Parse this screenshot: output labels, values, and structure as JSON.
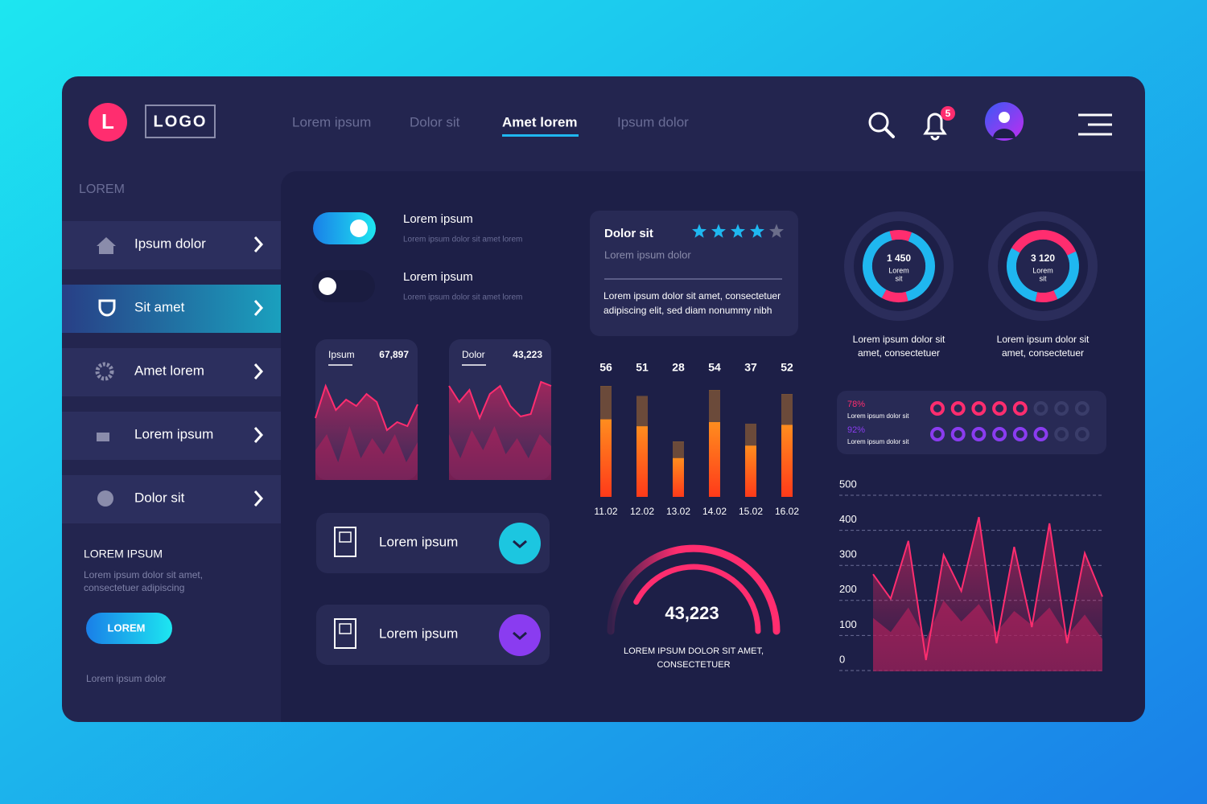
{
  "header": {
    "logo_letter": "L",
    "logo": "LOGO",
    "nav": [
      "Lorem ipsum",
      "Dolor sit",
      "Amet lorem",
      "Ipsum dolor"
    ],
    "active_nav": 2,
    "notifications": 5
  },
  "sidebar": {
    "heading": "LOREM",
    "items": [
      "Ipsum dolor",
      "Sit amet",
      "Amet lorem",
      "Lorem ipsum",
      "Dolor sit"
    ],
    "active_item": 1,
    "promo": {
      "title": "LOREM IPSUM",
      "text": [
        "Lorem ipsum dolor sit amet,",
        "consectetuer adipiscing"
      ],
      "button": "LOREM",
      "footer": "Lorem ipsum dolor"
    }
  },
  "toggles": [
    {
      "title": "Lorem ipsum",
      "subtitle": "Lorem ipsum dolor sit amet lorem",
      "on": true
    },
    {
      "title": "Lorem ipsum",
      "subtitle": "Lorem ipsum dolor sit amet lorem",
      "on": false
    }
  ],
  "mini_cards": [
    {
      "label": "Ipsum",
      "value": "67,897",
      "values": [
        70,
        110,
        80,
        93,
        85,
        100,
        90,
        55,
        65,
        60,
        87
      ],
      "back_values": [
        30,
        50,
        15,
        60,
        20,
        45,
        25,
        50,
        15,
        40
      ]
    },
    {
      "label": "Dolor",
      "value": "43,223",
      "values": [
        110,
        90,
        105,
        70,
        100,
        110,
        85,
        72,
        75,
        115,
        110
      ],
      "back_values": [
        50,
        20,
        55,
        30,
        60,
        25,
        45,
        20,
        50,
        35
      ]
    }
  ],
  "list_cards": [
    {
      "label": "Lorem ipsum",
      "color": "#1cc6e0"
    },
    {
      "label": "Lorem ipsum",
      "color": "#8a3cf0"
    }
  ],
  "rating_card": {
    "title": "Dolor sit",
    "subtitle": "Lorem ipsum dolor",
    "rating": 4,
    "max": 5,
    "text": [
      "Lorem ipsum dolor sit amet, consectetuer",
      "adipiscing elit, sed diam nonummy nibh"
    ]
  },
  "bar_chart": {
    "type": "bar",
    "categories": [
      "11.02",
      "12.02",
      "13.02",
      "14.02",
      "15.02",
      "16.02"
    ],
    "values": [
      56,
      51,
      28,
      54,
      37,
      52
    ]
  },
  "gauge": {
    "value": "43,223",
    "caption": [
      "LOREM IPSUM DOLOR SIT AMET,",
      "CONSECTETUER"
    ]
  },
  "donuts": [
    {
      "value": "1 450",
      "label": [
        "Lorem",
        "sit"
      ],
      "caption": [
        "Lorem ipsum dolor sit",
        "amet, consectetuer"
      ],
      "segments": [
        10,
        40,
        12,
        38
      ],
      "segment_colors": [
        "#ff2d6f",
        "#1fb7f0",
        "#ff2d6f",
        "#1fb7f0"
      ]
    },
    {
      "value": "3 120",
      "label": [
        "Lorem",
        "sit"
      ],
      "caption": [
        "Lorem ipsum dolor sit",
        "amet, consectetuer"
      ],
      "segments": [
        35,
        25,
        10,
        30
      ],
      "segment_colors": [
        "#ff2d6f",
        "#1fb7f0",
        "#ff2d6f",
        "#1fb7f0"
      ]
    }
  ],
  "progress": [
    {
      "value": 78,
      "value_label": "78%",
      "text": "Lorem ipsum dolor sit",
      "dots_on": 5,
      "dots_total": 8,
      "color": "#ff2d6f"
    },
    {
      "value": 92,
      "value_label": "92%",
      "text": "Lorem ipsum dolor sit",
      "dots_on": 6,
      "dots_total": 8,
      "color": "#8a3cf0"
    }
  ],
  "area_chart": {
    "type": "area",
    "ylim": [
      0,
      500
    ],
    "yticks": [
      0,
      100,
      200,
      300,
      400,
      500
    ],
    "grid": true,
    "series": [
      {
        "color": "#ff2d6f",
        "values": [
          245,
          175,
          340,
          0,
          300,
          197,
          408,
          48,
          323,
          94,
          390,
          48,
          305,
          181
        ]
      },
      {
        "color": "#a3205a",
        "values": [
          120,
          80,
          150,
          60,
          170,
          110,
          160,
          80,
          140,
          100,
          150,
          70,
          130,
          60
        ]
      }
    ]
  }
}
